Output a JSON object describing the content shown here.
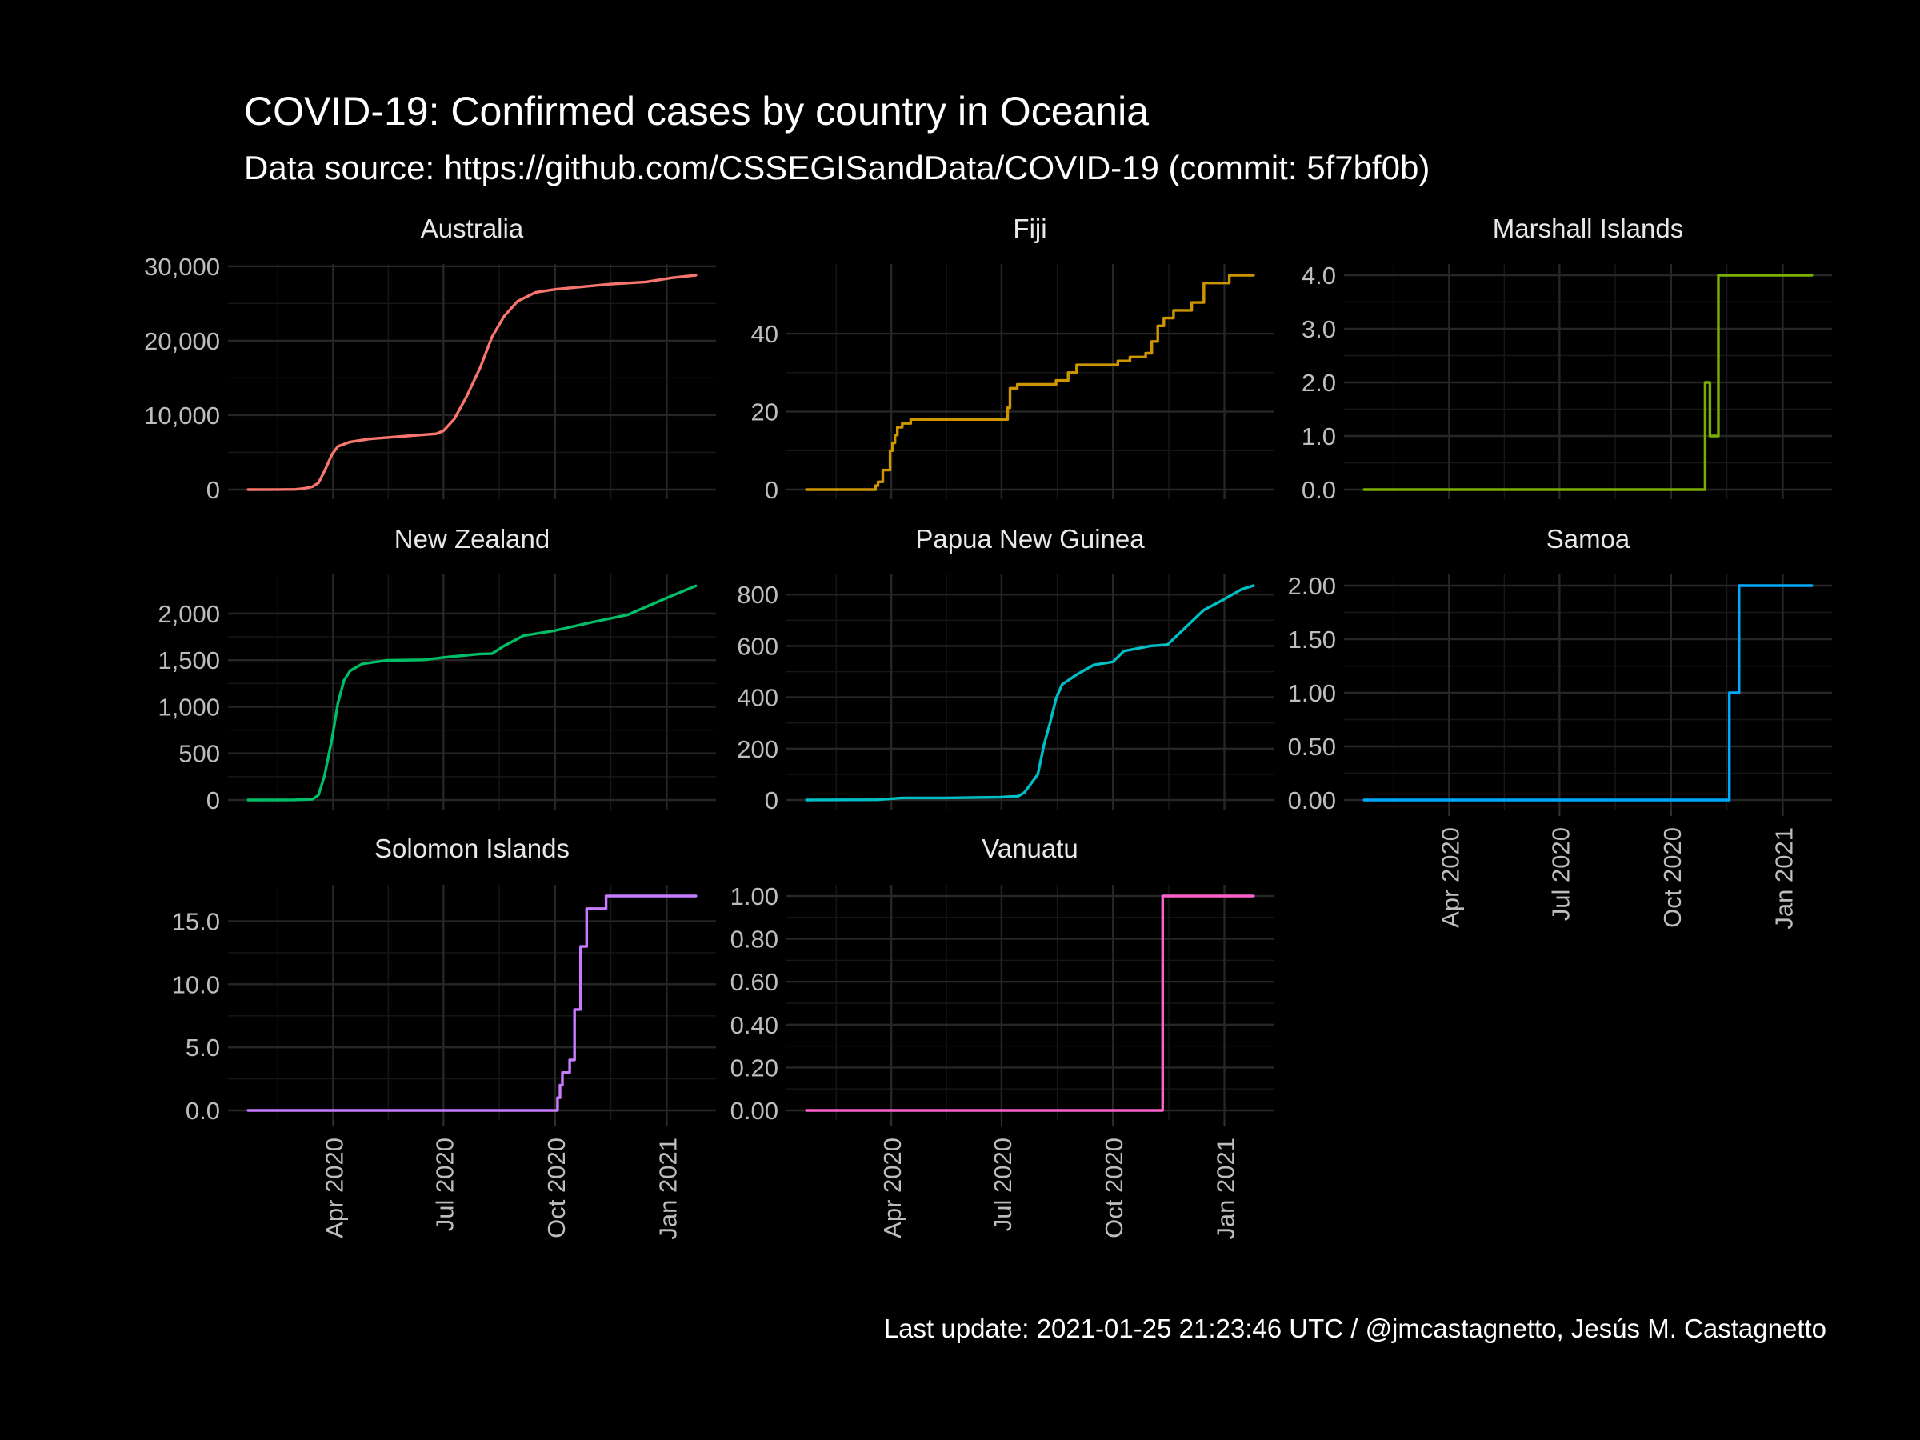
{
  "title": "COVID-19: Confirmed cases by country in Oceania",
  "subtitle": "Data source: https://github.com/CSSEGISandData/COVID-19 (commit: 5f7bf0b)",
  "caption": "Last update:  2021-01-25 21:23:46 UTC / @jmcastagnetto, Jesús M. Castagnetto",
  "chart_data": {
    "type": "line",
    "facet": "country",
    "x_axis": {
      "start": "2020-01-22",
      "end": "2021-01-25",
      "ticks": [
        {
          "date": "2020-04-01",
          "label": "Apr 2020"
        },
        {
          "date": "2020-07-01",
          "label": "Jul 2020"
        },
        {
          "date": "2020-10-01",
          "label": "Oct 2020"
        },
        {
          "date": "2021-01-01",
          "label": "Jan 2021"
        }
      ]
    },
    "panels": [
      {
        "name": "Australia",
        "color": "#F8766D",
        "step": false,
        "ylim": [
          0,
          28800
        ],
        "yticks": [
          {
            "v": 0,
            "l": "0"
          },
          {
            "v": 10000,
            "l": "10,000"
          },
          {
            "v": 20000,
            "l": "20,000"
          },
          {
            "v": 30000,
            "l": "30,000"
          }
        ],
        "points": [
          [
            "2020-01-22",
            0
          ],
          [
            "2020-02-15",
            15
          ],
          [
            "2020-03-01",
            30
          ],
          [
            "2020-03-08",
            150
          ],
          [
            "2020-03-15",
            400
          ],
          [
            "2020-03-20",
            900
          ],
          [
            "2020-03-25",
            2500
          ],
          [
            "2020-03-31",
            4700
          ],
          [
            "2020-04-05",
            5800
          ],
          [
            "2020-04-15",
            6400
          ],
          [
            "2020-05-01",
            6800
          ],
          [
            "2020-06-01",
            7200
          ],
          [
            "2020-06-25",
            7500
          ],
          [
            "2020-07-01",
            7900
          ],
          [
            "2020-07-10",
            9500
          ],
          [
            "2020-07-20",
            12500
          ],
          [
            "2020-07-31",
            16300
          ],
          [
            "2020-08-10",
            20500
          ],
          [
            "2020-08-20",
            23300
          ],
          [
            "2020-08-31",
            25300
          ],
          [
            "2020-09-15",
            26500
          ],
          [
            "2020-10-01",
            26900
          ],
          [
            "2020-10-20",
            27200
          ],
          [
            "2020-11-15",
            27600
          ],
          [
            "2020-12-15",
            27900
          ],
          [
            "2021-01-05",
            28450
          ],
          [
            "2021-01-25",
            28800
          ]
        ]
      },
      {
        "name": "Fiji",
        "color": "#CD9600",
        "step": true,
        "ylim": [
          0,
          55
        ],
        "yticks": [
          {
            "v": 0,
            "l": "0"
          },
          {
            "v": 20,
            "l": "20"
          },
          {
            "v": 40,
            "l": "40"
          }
        ],
        "points": [
          [
            "2020-01-22",
            0
          ],
          [
            "2020-03-19",
            1
          ],
          [
            "2020-03-21",
            2
          ],
          [
            "2020-03-25",
            5
          ],
          [
            "2020-03-29",
            5
          ],
          [
            "2020-03-31",
            10
          ],
          [
            "2020-04-02",
            12
          ],
          [
            "2020-04-04",
            14
          ],
          [
            "2020-04-06",
            16
          ],
          [
            "2020-04-10",
            17
          ],
          [
            "2020-04-17",
            18
          ],
          [
            "2020-07-04",
            18
          ],
          [
            "2020-07-06",
            21
          ],
          [
            "2020-07-08",
            26
          ],
          [
            "2020-07-14",
            27
          ],
          [
            "2020-08-05",
            27
          ],
          [
            "2020-08-15",
            28
          ],
          [
            "2020-08-25",
            30
          ],
          [
            "2020-09-01",
            32
          ],
          [
            "2020-10-05",
            33
          ],
          [
            "2020-10-15",
            34
          ],
          [
            "2020-10-28",
            35
          ],
          [
            "2020-11-02",
            38
          ],
          [
            "2020-11-07",
            42
          ],
          [
            "2020-11-12",
            44
          ],
          [
            "2020-11-20",
            46
          ],
          [
            "2020-12-05",
            48
          ],
          [
            "2020-12-15",
            53
          ],
          [
            "2021-01-05",
            55
          ],
          [
            "2021-01-12",
            55
          ],
          [
            "2021-01-25",
            55
          ]
        ]
      },
      {
        "name": "Marshall Islands",
        "color": "#7CAE00",
        "step": true,
        "ylim": [
          0,
          4
        ],
        "yticks": [
          {
            "v": 0,
            "l": "0.0"
          },
          {
            "v": 1,
            "l": "1.0"
          },
          {
            "v": 2,
            "l": "2.0"
          },
          {
            "v": 3,
            "l": "3.0"
          },
          {
            "v": 4,
            "l": "4.0"
          }
        ],
        "points": [
          [
            "2020-01-22",
            0
          ],
          [
            "2020-10-29",
            2
          ],
          [
            "2020-11-02",
            1
          ],
          [
            "2020-11-09",
            4
          ],
          [
            "2021-01-25",
            4
          ]
        ]
      },
      {
        "name": "New Zealand",
        "color": "#00BE67",
        "step": false,
        "ylim": [
          0,
          2300
        ],
        "yticks": [
          {
            "v": 0,
            "l": "0"
          },
          {
            "v": 500,
            "l": "500"
          },
          {
            "v": 1000,
            "l": "1,000"
          },
          {
            "v": 1500,
            "l": "1,500"
          },
          {
            "v": 2000,
            "l": "2,000"
          }
        ],
        "points": [
          [
            "2020-01-22",
            0
          ],
          [
            "2020-02-28",
            1
          ],
          [
            "2020-03-15",
            8
          ],
          [
            "2020-03-20",
            52
          ],
          [
            "2020-03-25",
            262
          ],
          [
            "2020-03-31",
            647
          ],
          [
            "2020-04-05",
            1039
          ],
          [
            "2020-04-10",
            1283
          ],
          [
            "2020-04-15",
            1386
          ],
          [
            "2020-04-25",
            1461
          ],
          [
            "2020-05-15",
            1498
          ],
          [
            "2020-06-15",
            1504
          ],
          [
            "2020-06-30",
            1528
          ],
          [
            "2020-07-31",
            1567
          ],
          [
            "2020-08-10",
            1570
          ],
          [
            "2020-08-20",
            1654
          ],
          [
            "2020-09-05",
            1764
          ],
          [
            "2020-09-30",
            1815
          ],
          [
            "2020-10-31",
            1906
          ],
          [
            "2020-11-30",
            1988
          ],
          [
            "2020-12-31",
            2162
          ],
          [
            "2021-01-25",
            2297
          ]
        ]
      },
      {
        "name": "Papua New Guinea",
        "color": "#00BFC4",
        "step": false,
        "ylim": [
          0,
          835
        ],
        "yticks": [
          {
            "v": 0,
            "l": "0"
          },
          {
            "v": 200,
            "l": "200"
          },
          {
            "v": 400,
            "l": "400"
          },
          {
            "v": 600,
            "l": "600"
          },
          {
            "v": 800,
            "l": "800"
          }
        ],
        "points": [
          [
            "2020-01-22",
            0
          ],
          [
            "2020-03-20",
            1
          ],
          [
            "2020-04-10",
            8
          ],
          [
            "2020-05-15",
            8
          ],
          [
            "2020-06-30",
            11
          ],
          [
            "2020-07-15",
            15
          ],
          [
            "2020-07-20",
            30
          ],
          [
            "2020-07-25",
            62
          ],
          [
            "2020-07-31",
            100
          ],
          [
            "2020-08-05",
            214
          ],
          [
            "2020-08-10",
            300
          ],
          [
            "2020-08-15",
            395
          ],
          [
            "2020-08-20",
            450
          ],
          [
            "2020-09-01",
            488
          ],
          [
            "2020-09-15",
            526
          ],
          [
            "2020-10-01",
            538
          ],
          [
            "2020-10-10",
            580
          ],
          [
            "2020-11-01",
            600
          ],
          [
            "2020-11-15",
            605
          ],
          [
            "2020-11-25",
            650
          ],
          [
            "2020-12-15",
            740
          ],
          [
            "2020-12-31",
            780
          ],
          [
            "2021-01-15",
            820
          ],
          [
            "2021-01-25",
            835
          ]
        ]
      },
      {
        "name": "Samoa",
        "color": "#00A9FF",
        "step": true,
        "ylim": [
          0,
          2
        ],
        "yticks": [
          {
            "v": 0,
            "l": "0.00"
          },
          {
            "v": 0.5,
            "l": "0.50"
          },
          {
            "v": 1,
            "l": "1.00"
          },
          {
            "v": 1.5,
            "l": "1.50"
          },
          {
            "v": 2,
            "l": "2.00"
          }
        ],
        "points": [
          [
            "2020-01-22",
            0
          ],
          [
            "2020-11-18",
            1
          ],
          [
            "2020-11-26",
            2
          ],
          [
            "2021-01-25",
            2
          ]
        ]
      },
      {
        "name": "Solomon Islands",
        "color": "#C77CFF",
        "step": true,
        "ylim": [
          0,
          17
        ],
        "yticks": [
          {
            "v": 0,
            "l": "0.0"
          },
          {
            "v": 5,
            "l": "5.0"
          },
          {
            "v": 10,
            "l": "10.0"
          },
          {
            "v": 15,
            "l": "15.0"
          }
        ],
        "points": [
          [
            "2020-01-22",
            0
          ],
          [
            "2020-10-03",
            1
          ],
          [
            "2020-10-05",
            2
          ],
          [
            "2020-10-07",
            3
          ],
          [
            "2020-10-13",
            4
          ],
          [
            "2020-10-17",
            8
          ],
          [
            "2020-10-22",
            13
          ],
          [
            "2020-10-27",
            16
          ],
          [
            "2020-11-12",
            17
          ],
          [
            "2021-01-25",
            17
          ]
        ]
      },
      {
        "name": "Vanuatu",
        "color": "#FF61CC",
        "step": true,
        "ylim": [
          0,
          1
        ],
        "yticks": [
          {
            "v": 0,
            "l": "0.00"
          },
          {
            "v": 0.2,
            "l": "0.20"
          },
          {
            "v": 0.4,
            "l": "0.40"
          },
          {
            "v": 0.6,
            "l": "0.60"
          },
          {
            "v": 0.8,
            "l": "0.80"
          },
          {
            "v": 1,
            "l": "1.00"
          }
        ],
        "points": [
          [
            "2020-01-22",
            0
          ],
          [
            "2020-11-11",
            1
          ],
          [
            "2021-01-25",
            1
          ]
        ]
      }
    ]
  }
}
